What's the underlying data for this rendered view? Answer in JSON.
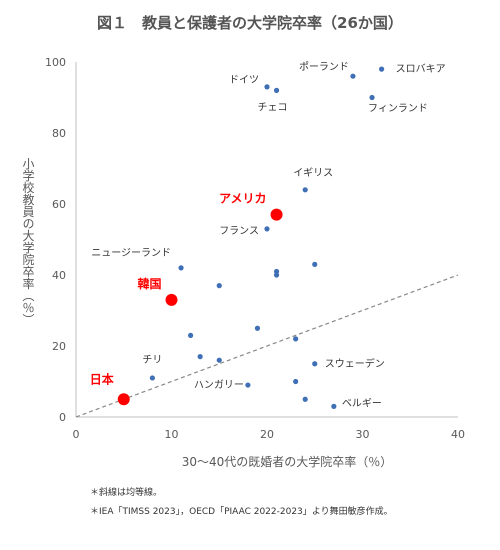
{
  "title": "図１　教員と保護者の大学院卒率（26か国）",
  "notes": [
    "＊斜線は均等線。",
    "＊IEA「TIMSS 2023」，OECD「PIAAC 2022-2023」より舞田敏彦作成。"
  ],
  "chart_data": {
    "type": "scatter",
    "title": "図１　教員と保護者の大学院卒率（26か国）",
    "xlabel": "30〜40代の既婚者の大学院卒率（％）",
    "ylabel": "小学校教員の大学院卒率（％）",
    "xlim": [
      0,
      40
    ],
    "ylim": [
      0,
      100
    ],
    "xticks": [
      0,
      10,
      20,
      30,
      40
    ],
    "yticks": [
      0,
      20,
      40,
      60,
      80,
      100
    ],
    "grid": false,
    "equality_line": true,
    "colors": {
      "default": "#3f6fb5",
      "highlight": "#ff0000",
      "equality": "#888888",
      "axis": "#bfbfbf"
    },
    "points": [
      {
        "x": 32,
        "y": 98,
        "label": "スロバキア",
        "highlight": false
      },
      {
        "x": 29,
        "y": 96,
        "label": "ポーランド",
        "highlight": false
      },
      {
        "x": 31,
        "y": 90,
        "label": "フィンランド",
        "highlight": false
      },
      {
        "x": 20,
        "y": 93,
        "label": "ドイツ",
        "highlight": false
      },
      {
        "x": 21,
        "y": 92,
        "label": "チェコ",
        "highlight": false
      },
      {
        "x": 24,
        "y": 64,
        "label": "イギリス",
        "highlight": false
      },
      {
        "x": 21,
        "y": 57,
        "label": "アメリカ",
        "highlight": true
      },
      {
        "x": 20,
        "y": 53,
        "label": "フランス",
        "highlight": false
      },
      {
        "x": 11,
        "y": 42,
        "label": "ニュージーランド",
        "highlight": false
      },
      {
        "x": 10,
        "y": 33,
        "label": "韓国",
        "highlight": true
      },
      {
        "x": 8,
        "y": 11,
        "label": "チリ",
        "highlight": false
      },
      {
        "x": 5,
        "y": 5,
        "label": "日本",
        "highlight": true
      },
      {
        "x": 25,
        "y": 15,
        "label": "スウェーデン",
        "highlight": false
      },
      {
        "x": 18,
        "y": 9,
        "label": "ハンガリー",
        "highlight": false
      },
      {
        "x": 27,
        "y": 3,
        "label": "ベルギー",
        "highlight": false
      },
      {
        "x": 25,
        "y": 43,
        "label": "",
        "highlight": false
      },
      {
        "x": 21,
        "y": 41,
        "label": "",
        "highlight": false
      },
      {
        "x": 21,
        "y": 40,
        "label": "",
        "highlight": false
      },
      {
        "x": 15,
        "y": 37,
        "label": "",
        "highlight": false
      },
      {
        "x": 19,
        "y": 25,
        "label": "",
        "highlight": false
      },
      {
        "x": 12,
        "y": 23,
        "label": "",
        "highlight": false
      },
      {
        "x": 23,
        "y": 22,
        "label": "",
        "highlight": false
      },
      {
        "x": 13,
        "y": 17,
        "label": "",
        "highlight": false
      },
      {
        "x": 15,
        "y": 16,
        "label": "",
        "highlight": false
      },
      {
        "x": 23,
        "y": 10,
        "label": "",
        "highlight": false
      },
      {
        "x": 24,
        "y": 5,
        "label": "",
        "highlight": false
      }
    ]
  }
}
